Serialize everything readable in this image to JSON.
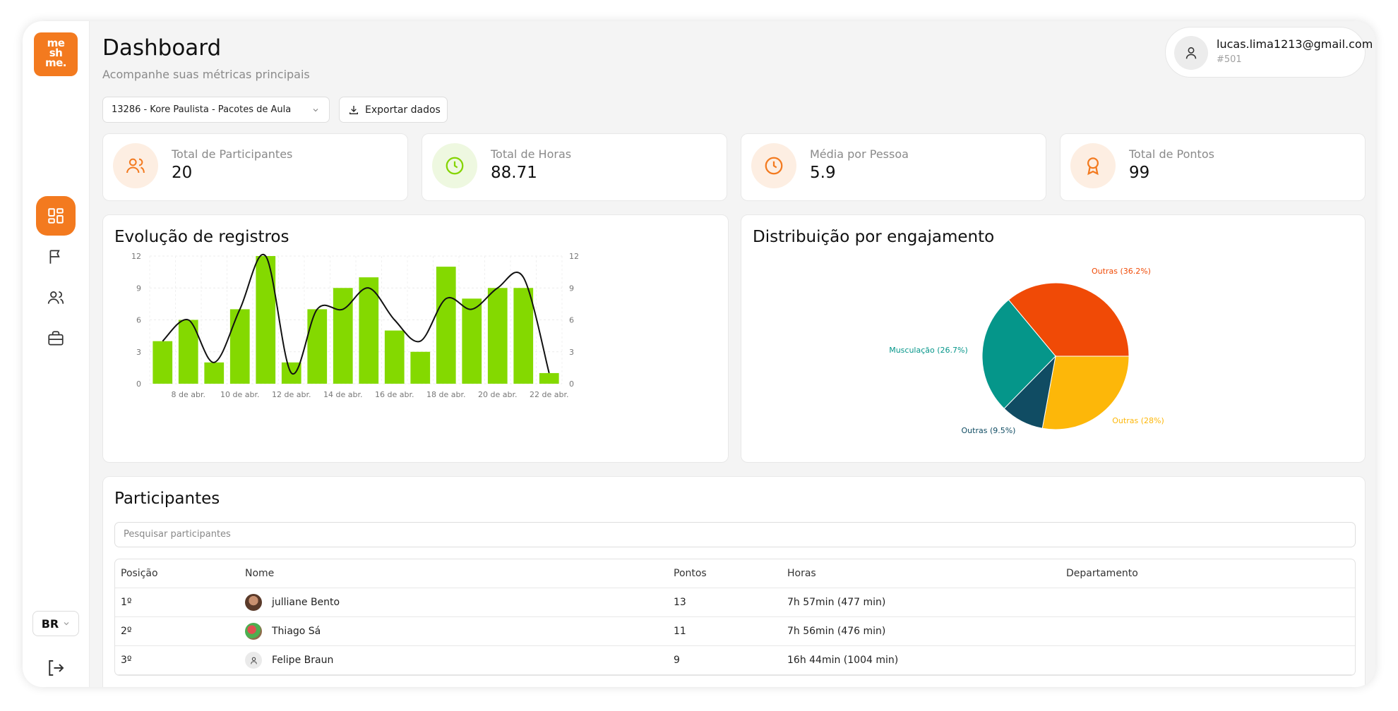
{
  "app": {
    "logo_text": [
      "me",
      "sh",
      "me."
    ],
    "brand_color": "#f37a1f"
  },
  "header": {
    "title": "Dashboard",
    "subtitle": "Acompanhe suas métricas principais"
  },
  "user": {
    "email": "lucas.lima1213@gmail.com",
    "id": "#501"
  },
  "toolbar": {
    "select_value": "13286 - Kore Paulista - Pacotes de Aula",
    "export_label": "Exportar dados"
  },
  "sidebar": {
    "items": [
      {
        "icon": "dashboard-grid-icon",
        "active": true
      },
      {
        "icon": "flag-icon",
        "active": false
      },
      {
        "icon": "users-icon",
        "active": false
      },
      {
        "icon": "briefcase-icon",
        "active": false
      }
    ],
    "language": "BR"
  },
  "stats": [
    {
      "label": "Total de Participantes",
      "value": "20",
      "icon": "users-icon",
      "color": "#f37a1f",
      "bg": "#fdeee2"
    },
    {
      "label": "Total de Horas",
      "value": "88.71",
      "icon": "clock-icon",
      "color": "#84d400",
      "bg": "#eef8e0"
    },
    {
      "label": "Média por Pessoa",
      "value": "5.9",
      "icon": "clock-icon",
      "color": "#f37a1f",
      "bg": "#fdeee2"
    },
    {
      "label": "Total de Pontos",
      "value": "99",
      "icon": "award-icon",
      "color": "#f37a1f",
      "bg": "#fdeee2"
    }
  ],
  "chart_data": [
    {
      "type": "bar",
      "title": "Evolução de registros",
      "x_tick_labels": [
        "8 de abr.",
        "10 de abr.",
        "12 de abr.",
        "14 de abr.",
        "16 de abr.",
        "18 de abr.",
        "20 de abr.",
        "22 de abr."
      ],
      "y_ticks": [
        0,
        3,
        6,
        9,
        12
      ],
      "ylim": [
        0,
        12
      ],
      "values": [
        4,
        6,
        2,
        7,
        12,
        2,
        7,
        9,
        10,
        5,
        3,
        11,
        8,
        9,
        9,
        1
      ],
      "line_values": [
        4,
        6,
        2,
        7,
        12,
        1,
        7,
        7,
        9,
        6,
        4,
        8,
        7,
        9,
        10,
        1
      ],
      "bar_color": "#84d900",
      "line_color": "#111111",
      "grid": true
    },
    {
      "type": "pie",
      "title": "Distribuição por engajamento",
      "slices": [
        {
          "label": "Outras (36.2%)",
          "value": 36.2,
          "color": "#f04a06"
        },
        {
          "label": "Outras (28%)",
          "value": 28,
          "color": "#fdb709"
        },
        {
          "label": "Outras (9.5%)",
          "value": 9.5,
          "color": "#104c63"
        },
        {
          "label": "Musculação (26.7%)",
          "value": 26.7,
          "color": "#05968a"
        }
      ]
    }
  ],
  "participants": {
    "title": "Participantes",
    "search_placeholder": "Pesquisar participantes",
    "columns": [
      "Posição",
      "Nome",
      "Pontos",
      "Horas",
      "Departamento"
    ],
    "rows": [
      {
        "pos": "1º",
        "name": "julliane Bento",
        "points": "13",
        "hours": "7h 57min (477 min)",
        "dept": ""
      },
      {
        "pos": "2º",
        "name": "Thiago Sá",
        "points": "11",
        "hours": "7h 56min (476 min)",
        "dept": ""
      },
      {
        "pos": "3º",
        "name": "Felipe Braun",
        "points": "9",
        "hours": "16h 44min (1004 min)",
        "dept": ""
      }
    ]
  }
}
